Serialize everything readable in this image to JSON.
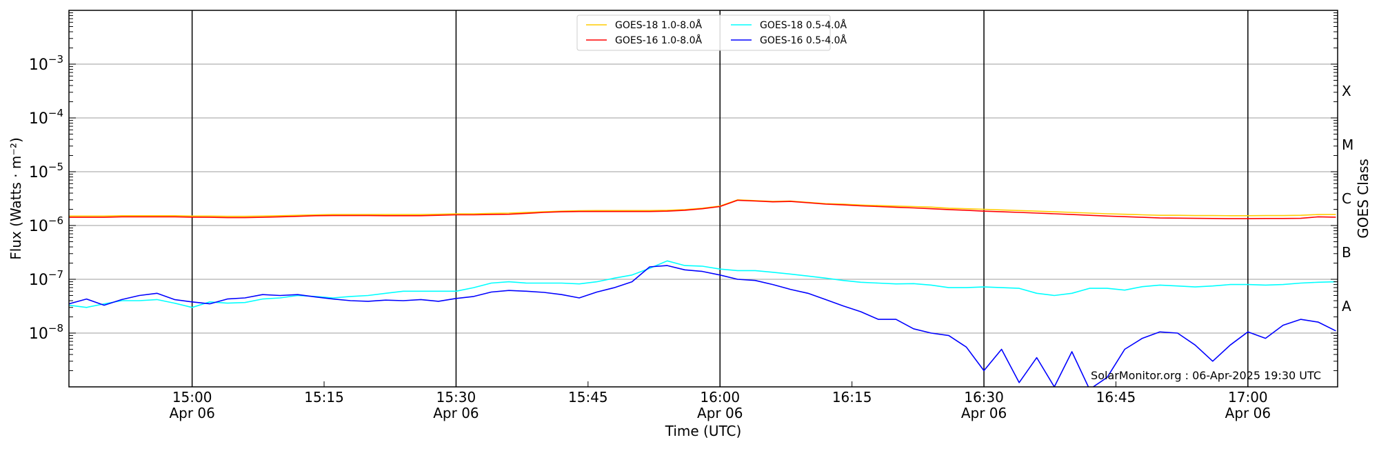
{
  "chart_data": {
    "type": "line",
    "title": "",
    "xlabel": "Time (UTC)",
    "ylabel": "Flux (Watts · m⁻²)",
    "ylabel_right": "GOES Class",
    "yscale": "log",
    "ylim": [
      1e-09,
      0.01
    ],
    "xlim": [
      "14:46",
      "17:10"
    ],
    "grid": "horizontal at decades; vertical black lines at half hours",
    "legend_position": "top-center",
    "y_ticks": [
      {
        "value": 0.001,
        "base": "10",
        "exp": "−3"
      },
      {
        "value": 0.0001,
        "base": "10",
        "exp": "−4"
      },
      {
        "value": 1e-05,
        "base": "10",
        "exp": "−5"
      },
      {
        "value": 1e-06,
        "base": "10",
        "exp": "−6"
      },
      {
        "value": 1e-07,
        "base": "10",
        "exp": "−7"
      },
      {
        "value": 1e-08,
        "base": "10",
        "exp": "−8"
      }
    ],
    "class_labels": [
      {
        "label": "X",
        "value": 0.000316
      },
      {
        "label": "M",
        "value": 3.16e-05
      },
      {
        "label": "C",
        "value": 3.16e-06
      },
      {
        "label": "B",
        "value": 3.16e-07
      },
      {
        "label": "A",
        "value": 3.16e-08
      }
    ],
    "x_ticks": [
      {
        "time": "15:00",
        "label": "15:00",
        "date": "Apr 06",
        "major": true
      },
      {
        "time": "15:15",
        "label": "15:15",
        "date": "",
        "major": false
      },
      {
        "time": "15:30",
        "label": "15:30",
        "date": "Apr 06",
        "major": true
      },
      {
        "time": "15:45",
        "label": "15:45",
        "date": "",
        "major": false
      },
      {
        "time": "16:00",
        "label": "16:00",
        "date": "Apr 06",
        "major": true
      },
      {
        "time": "16:15",
        "label": "16:15",
        "date": "",
        "major": false
      },
      {
        "time": "16:30",
        "label": "16:30",
        "date": "Apr 06",
        "major": true
      },
      {
        "time": "16:45",
        "label": "16:45",
        "date": "",
        "major": false
      },
      {
        "time": "17:00",
        "label": "17:00",
        "date": "Apr 06",
        "major": true
      }
    ],
    "x_start": "14:46",
    "x_step_minutes": 2,
    "series": [
      {
        "name": "GOES-18 1.0-8.0Å",
        "color": "#ffcc00",
        "values": [
          1.5e-06,
          1.5e-06,
          1.5e-06,
          1.52e-06,
          1.52e-06,
          1.52e-06,
          1.52e-06,
          1.5e-06,
          1.5e-06,
          1.48e-06,
          1.48e-06,
          1.5e-06,
          1.52e-06,
          1.55e-06,
          1.58e-06,
          1.6e-06,
          1.6e-06,
          1.6e-06,
          1.6e-06,
          1.6e-06,
          1.6e-06,
          1.62e-06,
          1.65e-06,
          1.65e-06,
          1.68e-06,
          1.7e-06,
          1.75e-06,
          1.8e-06,
          1.85e-06,
          1.88e-06,
          1.9e-06,
          1.9e-06,
          1.9e-06,
          1.9e-06,
          1.92e-06,
          1.98e-06,
          2.1e-06,
          2.3e-06,
          3e-06,
          2.9e-06,
          2.8e-06,
          2.85e-06,
          2.7e-06,
          2.55e-06,
          2.5e-06,
          2.4e-06,
          2.35e-06,
          2.3e-06,
          2.25e-06,
          2.2e-06,
          2.1e-06,
          2.05e-06,
          2e-06,
          1.95e-06,
          1.9e-06,
          1.85e-06,
          1.8e-06,
          1.75e-06,
          1.7e-06,
          1.65e-06,
          1.62e-06,
          1.58e-06,
          1.55e-06,
          1.55e-06,
          1.53e-06,
          1.53e-06,
          1.52e-06,
          1.52e-06,
          1.53e-06,
          1.53e-06,
          1.55e-06,
          1.6e-06,
          1.6e-06
        ]
      },
      {
        "name": "GOES-16 1.0-8.0Å",
        "color": "#ff0000",
        "values": [
          1.42e-06,
          1.42e-06,
          1.42e-06,
          1.45e-06,
          1.45e-06,
          1.45e-06,
          1.45e-06,
          1.43e-06,
          1.42e-06,
          1.4e-06,
          1.4e-06,
          1.42e-06,
          1.45e-06,
          1.48e-06,
          1.52e-06,
          1.53e-06,
          1.53e-06,
          1.53e-06,
          1.52e-06,
          1.52e-06,
          1.52e-06,
          1.55e-06,
          1.58e-06,
          1.58e-06,
          1.6e-06,
          1.62e-06,
          1.68e-06,
          1.75e-06,
          1.8e-06,
          1.82e-06,
          1.82e-06,
          1.82e-06,
          1.82e-06,
          1.82e-06,
          1.85e-06,
          1.92e-06,
          2.05e-06,
          2.25e-06,
          2.95e-06,
          2.85e-06,
          2.75e-06,
          2.8e-06,
          2.65e-06,
          2.5e-06,
          2.42e-06,
          2.32e-06,
          2.25e-06,
          2.18e-06,
          2.12e-06,
          2.05e-06,
          1.98e-06,
          1.92e-06,
          1.85e-06,
          1.8e-06,
          1.75e-06,
          1.7e-06,
          1.65e-06,
          1.6e-06,
          1.55e-06,
          1.5e-06,
          1.46e-06,
          1.42e-06,
          1.38e-06,
          1.37e-06,
          1.36e-06,
          1.35e-06,
          1.34e-06,
          1.34e-06,
          1.35e-06,
          1.35e-06,
          1.36e-06,
          1.45e-06,
          1.43e-06
        ]
      },
      {
        "name": "GOES-18 0.5-4.0Å",
        "color": "#00ffff",
        "values": [
          3.3e-08,
          3e-08,
          3.5e-08,
          4e-08,
          4e-08,
          4.2e-08,
          3.6e-08,
          3e-08,
          3.8e-08,
          3.6e-08,
          3.7e-08,
          4.3e-08,
          4.5e-08,
          5e-08,
          4.8e-08,
          4.5e-08,
          4.8e-08,
          5e-08,
          5.5e-08,
          6e-08,
          6e-08,
          6e-08,
          6e-08,
          7e-08,
          8.5e-08,
          9e-08,
          8.5e-08,
          8.5e-08,
          8.5e-08,
          8.2e-08,
          9e-08,
          1.05e-07,
          1.2e-07,
          1.6e-07,
          2.2e-07,
          1.8e-07,
          1.75e-07,
          1.55e-07,
          1.45e-07,
          1.45e-07,
          1.35e-07,
          1.25e-07,
          1.15e-07,
          1.05e-07,
          9.5e-08,
          8.8e-08,
          8.5e-08,
          8.2e-08,
          8.3e-08,
          7.8e-08,
          7e-08,
          7e-08,
          7.2e-08,
          7e-08,
          6.8e-08,
          5.5e-08,
          5e-08,
          5.5e-08,
          6.8e-08,
          6.8e-08,
          6.3e-08,
          7.3e-08,
          7.8e-08,
          7.5e-08,
          7.2e-08,
          7.5e-08,
          8e-08,
          8e-08,
          7.8e-08,
          8e-08,
          8.5e-08,
          8.8e-08,
          9e-08
        ]
      },
      {
        "name": "GOES-16 0.5-4.0Å",
        "color": "#0000ff",
        "values": [
          3.5e-08,
          4.3e-08,
          3.3e-08,
          4.2e-08,
          5e-08,
          5.5e-08,
          4.2e-08,
          3.8e-08,
          3.5e-08,
          4.3e-08,
          4.5e-08,
          5.2e-08,
          5e-08,
          5.2e-08,
          4.7e-08,
          4.3e-08,
          4e-08,
          3.9e-08,
          4.1e-08,
          4e-08,
          4.2e-08,
          3.9e-08,
          4.4e-08,
          4.8e-08,
          5.8e-08,
          6.2e-08,
          6e-08,
          5.7e-08,
          5.2e-08,
          4.5e-08,
          5.8e-08,
          7e-08,
          9e-08,
          1.7e-07,
          1.8e-07,
          1.5e-07,
          1.4e-07,
          1.2e-07,
          1e-07,
          9.5e-08,
          8e-08,
          6.5e-08,
          5.5e-08,
          4.2e-08,
          3.2e-08,
          2.5e-08,
          1.8e-08,
          1.8e-08,
          1.2e-08,
          1e-08,
          9e-09,
          5.5e-09,
          2e-09,
          5e-09,
          1.2e-09,
          3.5e-09,
          1e-09,
          4.5e-09,
          9e-10,
          1.5e-09,
          5e-09,
          8e-09,
          1.05e-08,
          1e-08,
          6e-09,
          3e-09,
          6e-09,
          1.05e-08,
          8e-09,
          1.4e-08,
          1.8e-08,
          1.6e-08,
          1.1e-08
        ]
      }
    ],
    "watermark": "SolarMonitor.org : 06-Apr-2025 19:30 UTC"
  }
}
